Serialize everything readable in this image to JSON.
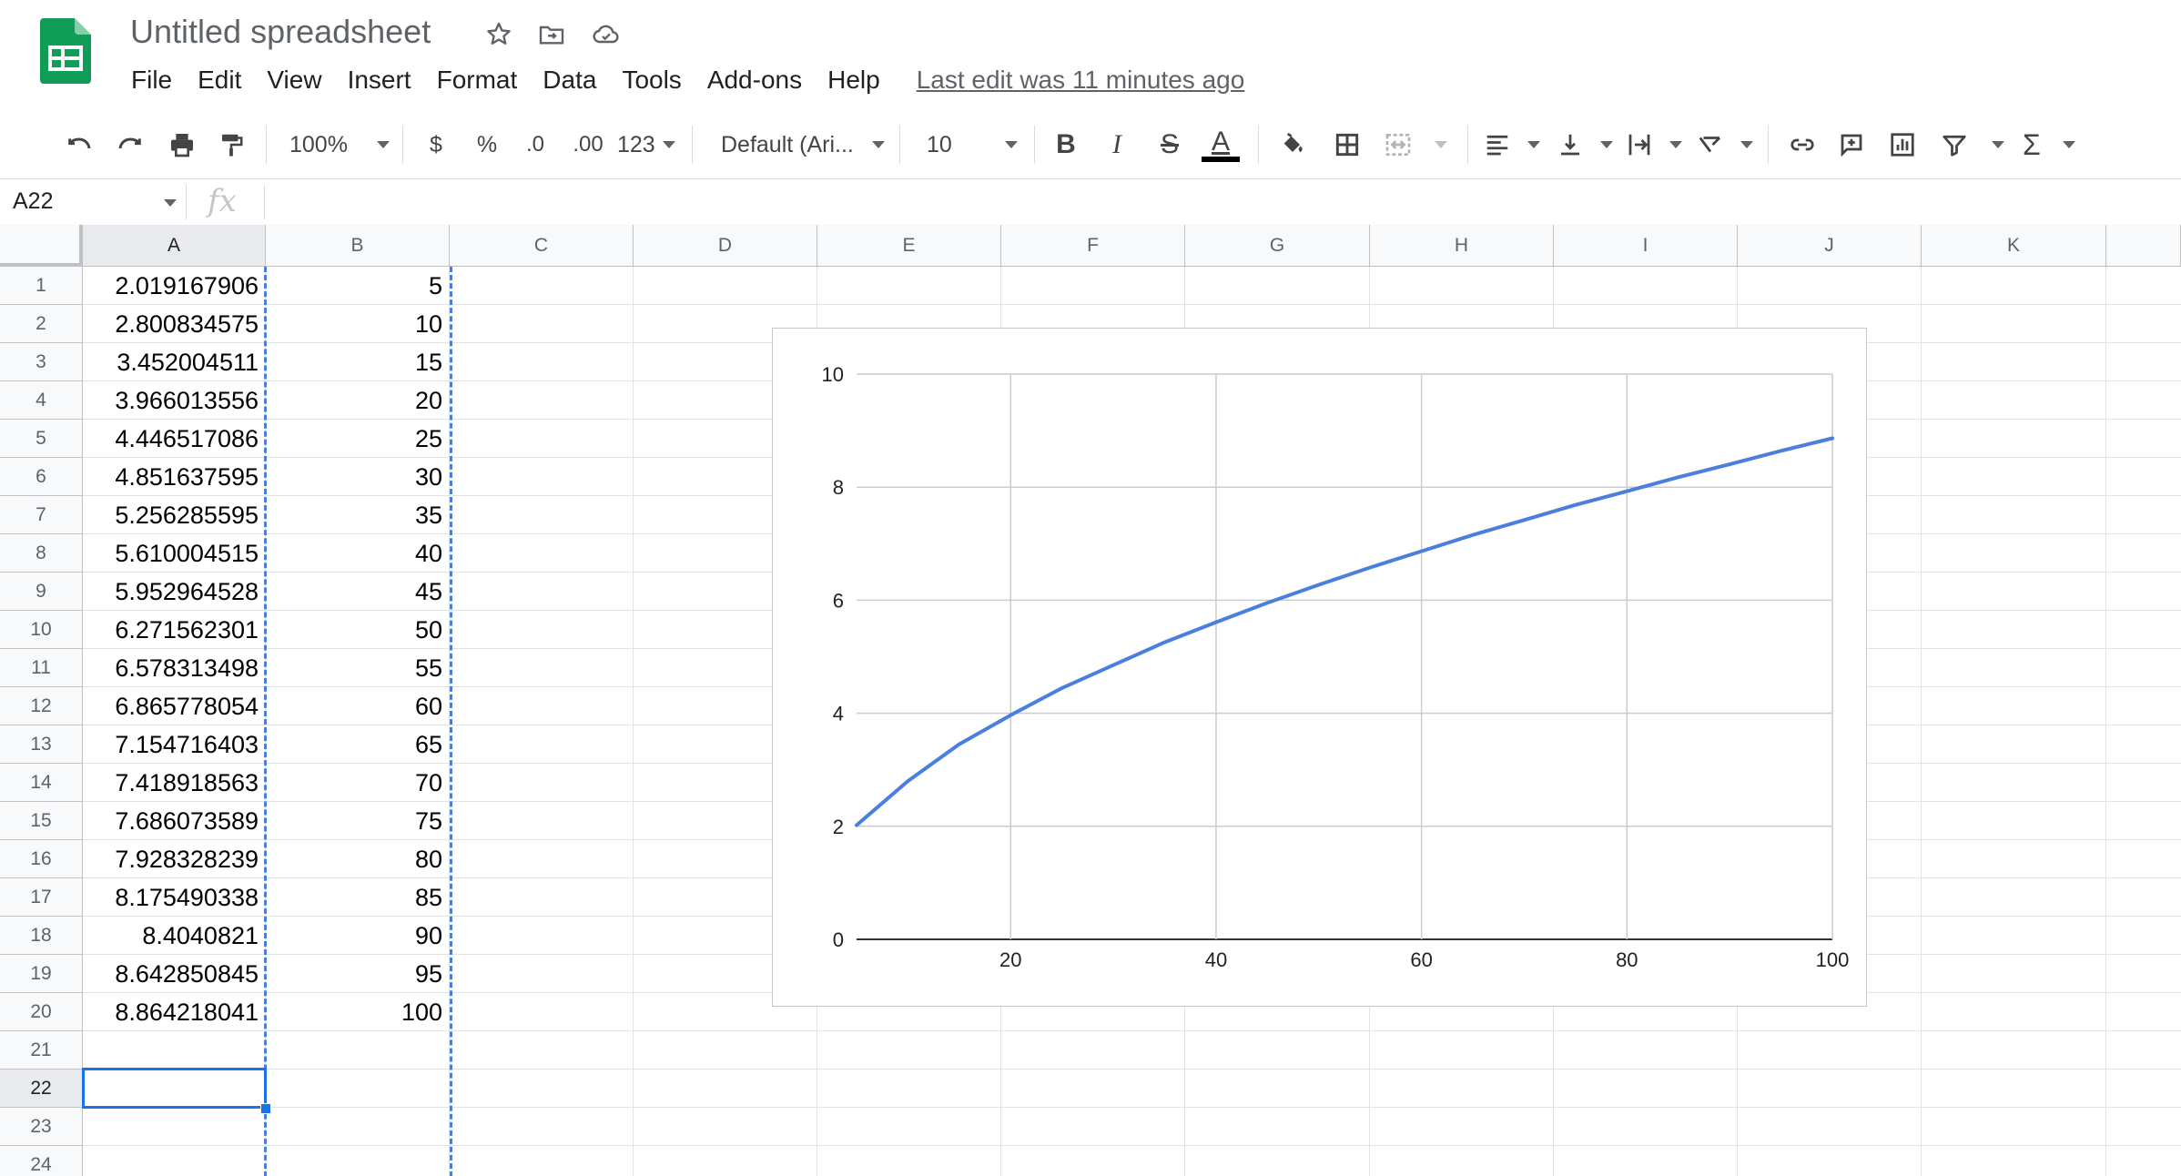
{
  "header": {
    "title": "Untitled spreadsheet",
    "menus": [
      "File",
      "Edit",
      "View",
      "Insert",
      "Format",
      "Data",
      "Tools",
      "Add-ons",
      "Help"
    ],
    "last_edit": "Last edit was 11 minutes ago",
    "icons": [
      "star-icon",
      "move-folder-icon",
      "cloud-status-icon"
    ]
  },
  "toolbar": {
    "zoom": "100%",
    "currency": "$",
    "percent": "%",
    "decrease_decimal": ".0",
    "increase_decimal": ".00",
    "more_formats": "123",
    "font": "Default (Ari...",
    "font_size": "10",
    "bold": "B",
    "italic": "I",
    "strikethrough": "S",
    "text_color": "A",
    "sum": "Σ"
  },
  "formula_bar": {
    "name_box": "A22",
    "fx": "fx",
    "value": ""
  },
  "grid": {
    "columns": [
      "A",
      "B",
      "C",
      "D",
      "E",
      "F",
      "G",
      "H",
      "I",
      "J",
      "K"
    ],
    "selected_column": "A",
    "selected_row": 22,
    "visible_rows": [
      1,
      2,
      3,
      4,
      5,
      6,
      7,
      8,
      9,
      10,
      11,
      12,
      13,
      14,
      15,
      16,
      17,
      18,
      19,
      20,
      21,
      22,
      23,
      24
    ],
    "col_a": [
      "2.019167906",
      "2.800834575",
      "3.452004511",
      "3.966013556",
      "4.446517086",
      "4.851637595",
      "5.256285595",
      "5.610004515",
      "5.952964528",
      "6.271562301",
      "6.578313498",
      "6.865778054",
      "7.154716403",
      "7.418918563",
      "7.686073589",
      "7.928328239",
      "8.175490338",
      "8.4040821",
      "8.642850845",
      "8.864218041"
    ],
    "col_b": [
      "5",
      "10",
      "15",
      "20",
      "25",
      "30",
      "35",
      "40",
      "45",
      "50",
      "55",
      "60",
      "65",
      "70",
      "75",
      "80",
      "85",
      "90",
      "95",
      "100"
    ]
  },
  "chart_data": {
    "type": "line",
    "x": [
      5,
      10,
      15,
      20,
      25,
      30,
      35,
      40,
      45,
      50,
      55,
      60,
      65,
      70,
      75,
      80,
      85,
      90,
      95,
      100
    ],
    "series": [
      {
        "values": [
          2.019167906,
          2.800834575,
          3.452004511,
          3.966013556,
          4.446517086,
          4.851637595,
          5.256285595,
          5.610004515,
          5.952964528,
          6.271562301,
          6.578313498,
          6.865778054,
          7.154716403,
          7.418918563,
          7.686073589,
          7.928328239,
          8.175490338,
          8.4040821,
          8.642850845,
          8.864218041
        ],
        "color": "#4a7fe0"
      }
    ],
    "xticks": [
      20,
      40,
      60,
      80,
      100
    ],
    "yticks": [
      0,
      2,
      4,
      6,
      8,
      10
    ],
    "xlim": [
      5,
      100
    ],
    "ylim": [
      0,
      10
    ],
    "title": "",
    "xlabel": "",
    "ylabel": "",
    "grid": true,
    "legend": "none"
  },
  "colors": {
    "accent": "#1a73e8",
    "series": "#4a7fe0",
    "logo_green": "#0f9d58"
  }
}
